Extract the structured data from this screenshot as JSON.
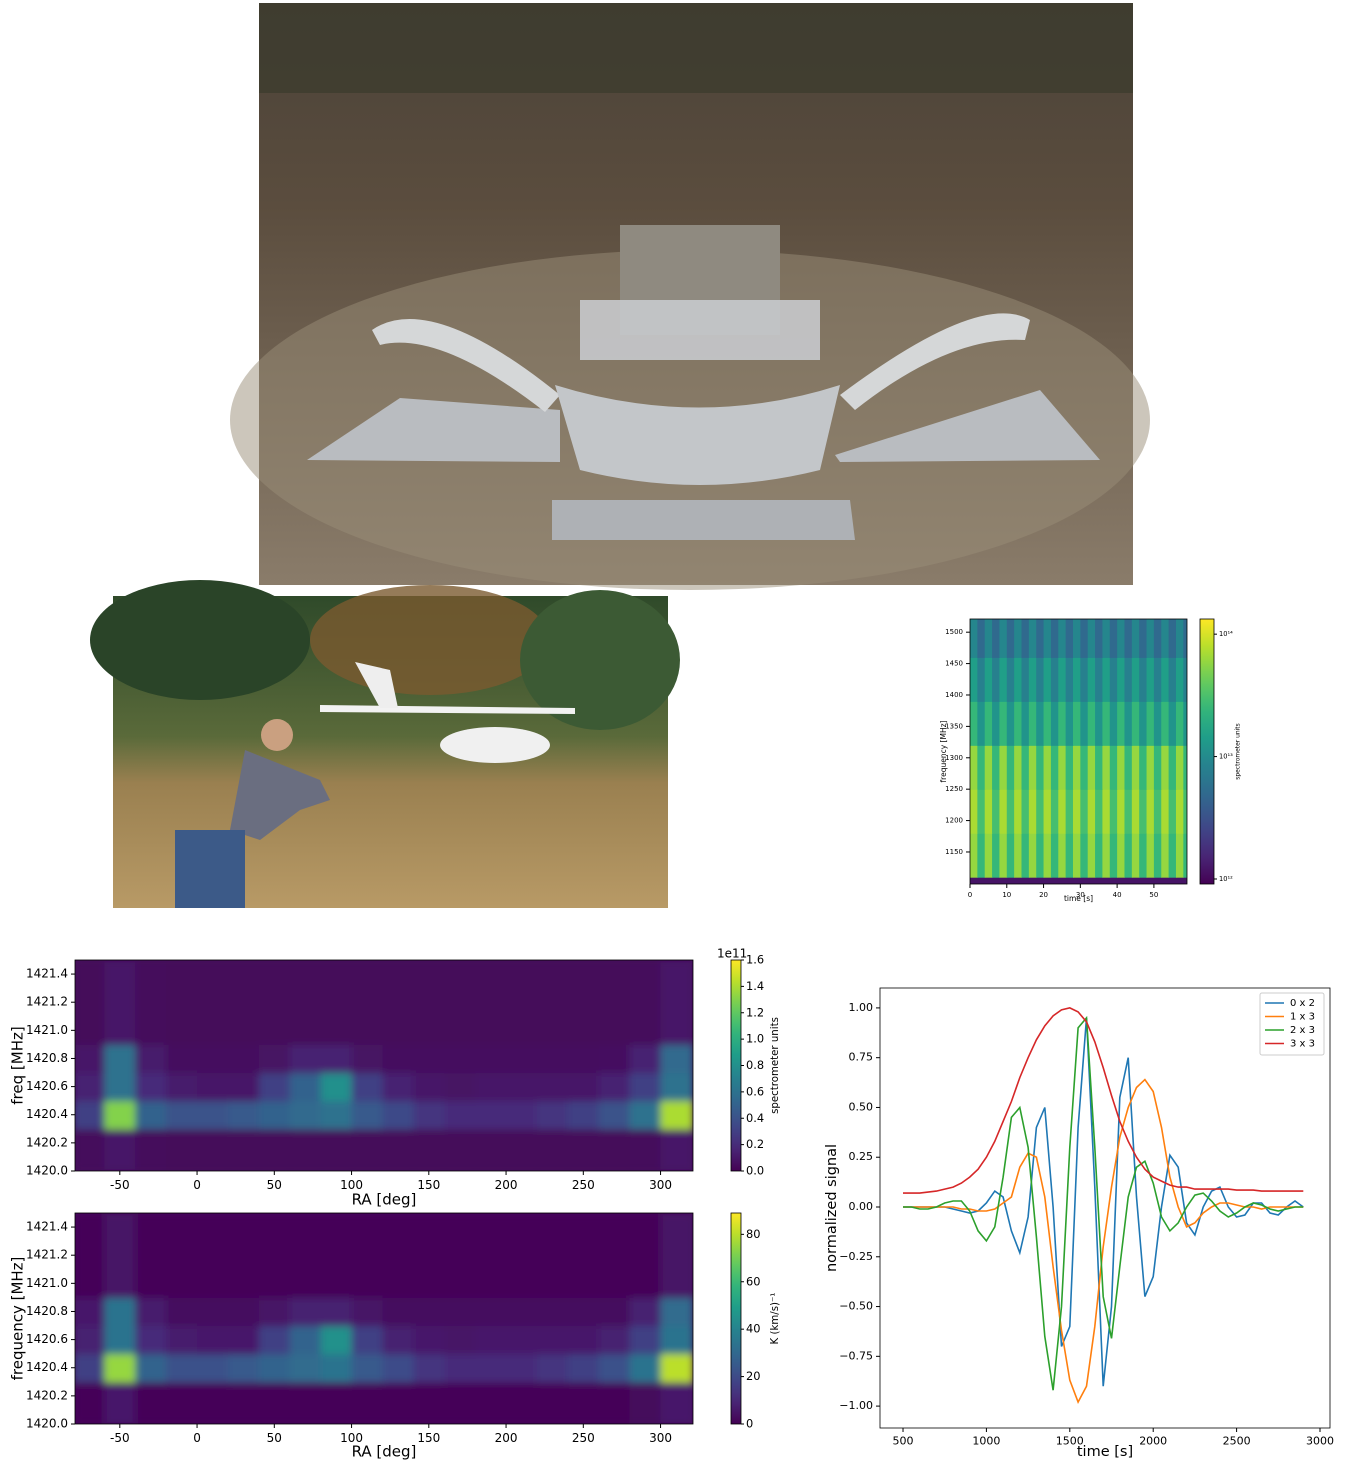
{
  "chart_data": [
    {
      "type": "heatmap",
      "xlabel": "time [s]",
      "ylabel": "frequency [MHz]",
      "colormap": "viridis",
      "xlim": [
        0,
        59
      ],
      "ylim": [
        1099,
        1521
      ],
      "xticks": [
        0,
        10,
        20,
        30,
        40,
        50
      ],
      "yticks": [
        1150,
        1200,
        1250,
        1300,
        1350,
        1400,
        1450,
        1500
      ],
      "xbins": [
        0,
        2,
        4,
        6,
        8,
        10,
        12,
        14,
        16,
        18,
        20,
        22,
        24,
        26,
        28,
        30,
        32,
        34,
        36,
        38,
        40,
        42,
        44,
        46,
        48,
        50,
        52,
        54,
        56,
        58,
        59
      ],
      "ybins": [
        1099,
        1110,
        1180,
        1250,
        1320,
        1390,
        1460,
        1521
      ],
      "z": [
        [
          1200000000000.0,
          1200000000000.0,
          1200000000000.0,
          1200000000000.0,
          1200000000000.0,
          1200000000000.0,
          1200000000000.0,
          1200000000000.0,
          1200000000000.0,
          1200000000000.0,
          1200000000000.0,
          1200000000000.0,
          1200000000000.0,
          1200000000000.0,
          1200000000000.0,
          1200000000000.0,
          1200000000000.0,
          1200000000000.0,
          1200000000000.0,
          1200000000000.0,
          1200000000000.0,
          1200000000000.0,
          1200000000000.0,
          1200000000000.0,
          1200000000000.0,
          1200000000000.0,
          1200000000000.0,
          1200000000000.0,
          1200000000000.0,
          1200000000000.0
        ],
        [
          60000000000000.0,
          25000000000000.0,
          60000000000000.0,
          25000000000000.0,
          60000000000000.0,
          25000000000000.0,
          60000000000000.0,
          25000000000000.0,
          60000000000000.0,
          25000000000000.0,
          60000000000000.0,
          25000000000000.0,
          60000000000000.0,
          25000000000000.0,
          60000000000000.0,
          25000000000000.0,
          60000000000000.0,
          25000000000000.0,
          60000000000000.0,
          25000000000000.0,
          60000000000000.0,
          25000000000000.0,
          60000000000000.0,
          25000000000000.0,
          60000000000000.0,
          25000000000000.0,
          60000000000000.0,
          25000000000000.0,
          60000000000000.0,
          25000000000000.0
        ],
        [
          70000000000000.0,
          30000000000000.0,
          70000000000000.0,
          30000000000000.0,
          70000000000000.0,
          30000000000000.0,
          70000000000000.0,
          30000000000000.0,
          70000000000000.0,
          30000000000000.0,
          70000000000000.0,
          30000000000000.0,
          70000000000000.0,
          30000000000000.0,
          70000000000000.0,
          30000000000000.0,
          70000000000000.0,
          30000000000000.0,
          70000000000000.0,
          30000000000000.0,
          70000000000000.0,
          30000000000000.0,
          70000000000000.0,
          30000000000000.0,
          70000000000000.0,
          30000000000000.0,
          70000000000000.0,
          30000000000000.0,
          70000000000000.0,
          30000000000000.0
        ],
        [
          60000000000000.0,
          25000000000000.0,
          60000000000000.0,
          25000000000000.0,
          60000000000000.0,
          25000000000000.0,
          60000000000000.0,
          25000000000000.0,
          60000000000000.0,
          25000000000000.0,
          60000000000000.0,
          25000000000000.0,
          60000000000000.0,
          25000000000000.0,
          60000000000000.0,
          25000000000000.0,
          60000000000000.0,
          25000000000000.0,
          60000000000000.0,
          25000000000000.0,
          60000000000000.0,
          25000000000000.0,
          60000000000000.0,
          25000000000000.0,
          60000000000000.0,
          25000000000000.0,
          60000000000000.0,
          25000000000000.0,
          60000000000000.0,
          25000000000000.0
        ],
        [
          25000000000000.0,
          12000000000000.0,
          25000000000000.0,
          12000000000000.0,
          25000000000000.0,
          12000000000000.0,
          25000000000000.0,
          12000000000000.0,
          25000000000000.0,
          12000000000000.0,
          25000000000000.0,
          12000000000000.0,
          25000000000000.0,
          12000000000000.0,
          25000000000000.0,
          12000000000000.0,
          25000000000000.0,
          12000000000000.0,
          25000000000000.0,
          12000000000000.0,
          25000000000000.0,
          12000000000000.0,
          25000000000000.0,
          12000000000000.0,
          25000000000000.0,
          12000000000000.0,
          25000000000000.0,
          12000000000000.0,
          25000000000000.0,
          12000000000000.0
        ],
        [
          15000000000000.0,
          8000000000000.0,
          15000000000000.0,
          8000000000000.0,
          15000000000000.0,
          8000000000000.0,
          15000000000000.0,
          8000000000000.0,
          15000000000000.0,
          8000000000000.0,
          15000000000000.0,
          8000000000000.0,
          15000000000000.0,
          8000000000000.0,
          15000000000000.0,
          8000000000000.0,
          15000000000000.0,
          8000000000000.0,
          15000000000000.0,
          8000000000000.0,
          15000000000000.0,
          8000000000000.0,
          15000000000000.0,
          8000000000000.0,
          15000000000000.0,
          8000000000000.0,
          15000000000000.0,
          8000000000000.0,
          15000000000000.0,
          8000000000000.0
        ],
        [
          9000000000000.0,
          5000000000000.0,
          9000000000000.0,
          5000000000000.0,
          9000000000000.0,
          5000000000000.0,
          9000000000000.0,
          5000000000000.0,
          9000000000000.0,
          5000000000000.0,
          9000000000000.0,
          5000000000000.0,
          9000000000000.0,
          5000000000000.0,
          9000000000000.0,
          5000000000000.0,
          9000000000000.0,
          5000000000000.0,
          9000000000000.0,
          5000000000000.0,
          9000000000000.0,
          5000000000000.0,
          9000000000000.0,
          5000000000000.0,
          9000000000000.0,
          5000000000000.0,
          9000000000000.0,
          5000000000000.0,
          9000000000000.0,
          5000000000000.0
        ]
      ],
      "colorbar": {
        "label": "spectrometer units",
        "log": true,
        "lim": [
          910000000000.0,
          133000000000000.0
        ],
        "ticks": [
          {
            "value": 1000000000000.0,
            "label": "10¹²"
          },
          {
            "value": 10000000000000.0,
            "label": "10¹³"
          },
          {
            "value": 100000000000000.0,
            "label": "10¹⁴"
          }
        ]
      }
    },
    {
      "type": "heatmap",
      "xlabel": "RA [deg]",
      "ylabel": "freq [MHz]",
      "colormap": "viridis",
      "xlim": [
        -79,
        321
      ],
      "ylim": [
        1420,
        1421.5
      ],
      "xticks": [
        -50,
        0,
        50,
        100,
        150,
        200,
        250,
        300
      ],
      "yticks": [
        {
          "value": 1420.0,
          "label": "1420.0"
        },
        1420.2,
        1420.4,
        1420.6,
        1420.8,
        {
          "value": 1421.0,
          "label": "1421.0"
        },
        1421.2,
        1421.4
      ],
      "xbins": [
        -80,
        -60,
        -40,
        -20,
        0,
        20,
        40,
        60,
        80,
        100,
        120,
        140,
        160,
        180,
        200,
        220,
        240,
        260,
        280,
        300,
        321
      ],
      "ybins": [
        1420.0,
        1420.3,
        1420.5,
        1420.7,
        1420.9,
        1421.5
      ],
      "z": [
        [
          0.04,
          0.1,
          0.04,
          0.03,
          0.03,
          0.03,
          0.03,
          0.03,
          0.03,
          0.03,
          0.03,
          0.03,
          0.03,
          0.03,
          0.03,
          0.03,
          0.03,
          0.03,
          0.04,
          0.1
        ],
        [
          0.3,
          1.3,
          0.5,
          0.4,
          0.4,
          0.45,
          0.5,
          0.55,
          0.6,
          0.45,
          0.35,
          0.25,
          0.2,
          0.2,
          0.2,
          0.25,
          0.3,
          0.4,
          0.6,
          1.4
        ],
        [
          0.15,
          0.6,
          0.2,
          0.12,
          0.1,
          0.1,
          0.3,
          0.5,
          0.8,
          0.3,
          0.15,
          0.1,
          0.08,
          0.1,
          0.1,
          0.1,
          0.1,
          0.15,
          0.3,
          0.6
        ],
        [
          0.1,
          0.6,
          0.12,
          0.05,
          0.05,
          0.05,
          0.08,
          0.15,
          0.15,
          0.08,
          0.05,
          0.05,
          0.05,
          0.05,
          0.05,
          0.05,
          0.05,
          0.06,
          0.15,
          0.55
        ],
        [
          0.03,
          0.1,
          0.04,
          0.03,
          0.03,
          0.03,
          0.03,
          0.03,
          0.03,
          0.03,
          0.03,
          0.03,
          0.03,
          0.03,
          0.03,
          0.03,
          0.03,
          0.03,
          0.04,
          0.1
        ]
      ],
      "colorbar": {
        "label": "spectrometer units",
        "log": false,
        "lim": [
          0,
          1.6
        ],
        "offset": "1e11",
        "ticks": [
          {
            "value": 0.0,
            "label": "0.0"
          },
          0.2,
          0.4,
          0.6,
          0.8,
          {
            "value": 1.0,
            "label": "1.0"
          },
          1.2,
          1.4,
          1.6
        ]
      }
    },
    {
      "type": "heatmap",
      "xlabel": "RA [deg]",
      "ylabel": "frequency [MHz]",
      "colormap": "viridis",
      "xlim": [
        -79,
        321
      ],
      "ylim": [
        1420,
        1421.5
      ],
      "xticks": [
        -50,
        0,
        50,
        100,
        150,
        200,
        250,
        300
      ],
      "yticks": [
        {
          "value": 1420.0,
          "label": "1420.0"
        },
        1420.2,
        1420.4,
        1420.6,
        1420.8,
        {
          "value": 1421.0,
          "label": "1421.0"
        },
        1421.2,
        1421.4
      ],
      "xbins": [
        -80,
        -60,
        -40,
        -20,
        0,
        20,
        40,
        60,
        80,
        100,
        120,
        140,
        160,
        180,
        200,
        220,
        240,
        260,
        280,
        300,
        321
      ],
      "ybins": [
        1420.0,
        1420.3,
        1420.5,
        1420.7,
        1420.9,
        1421.5
      ],
      "z": [
        [
          1,
          6,
          1,
          1,
          1,
          1,
          1,
          1,
          1,
          1,
          1,
          1,
          1,
          1,
          1,
          1,
          1,
          1,
          2,
          6
        ],
        [
          17,
          75,
          28,
          22,
          22,
          25,
          28,
          31,
          34,
          25,
          20,
          14,
          11,
          11,
          11,
          14,
          17,
          22,
          34,
          80
        ],
        [
          8,
          34,
          11,
          7,
          6,
          6,
          17,
          28,
          45,
          17,
          8,
          6,
          5,
          6,
          6,
          6,
          6,
          8,
          17,
          34
        ],
        [
          6,
          34,
          7,
          3,
          3,
          3,
          5,
          8,
          8,
          5,
          3,
          3,
          3,
          3,
          3,
          3,
          3,
          3,
          8,
          31
        ],
        [
          1,
          5,
          1,
          1,
          1,
          1,
          1,
          1,
          1,
          1,
          1,
          1,
          1,
          1,
          1,
          1,
          1,
          1,
          1,
          5
        ]
      ],
      "colorbar": {
        "label": "K (km/s)⁻¹",
        "log": false,
        "lim": [
          0,
          89
        ],
        "ticks": [
          0,
          20,
          40,
          60,
          80
        ]
      }
    },
    {
      "type": "line",
      "xlabel": "time [s]",
      "ylabel": "normalized signal",
      "legend": "upper right",
      "xlim": [
        362,
        3060
      ],
      "ylim": [
        -1.11,
        1.1
      ],
      "xticks": [
        500,
        1000,
        1500,
        2000,
        2500,
        3000
      ],
      "yticks": [
        {
          "value": -1,
          "label": "−1.00"
        },
        {
          "value": -0.75,
          "label": "−0.75"
        },
        {
          "value": -0.5,
          "label": "−0.50"
        },
        {
          "value": -0.25,
          "label": "−0.25"
        },
        {
          "value": 0,
          "label": "0.00"
        },
        {
          "value": 0.25,
          "label": "0.25"
        },
        {
          "value": 0.5,
          "label": "0.50"
        },
        {
          "value": 0.75,
          "label": "0.75"
        },
        {
          "value": 1,
          "label": "1.00"
        }
      ],
      "x": [
        500,
        550,
        600,
        650,
        700,
        750,
        800,
        850,
        900,
        950,
        1000,
        1050,
        1100,
        1150,
        1200,
        1250,
        1300,
        1350,
        1400,
        1450,
        1500,
        1550,
        1600,
        1650,
        1700,
        1750,
        1800,
        1850,
        1900,
        1950,
        2000,
        2050,
        2100,
        2150,
        2200,
        2250,
        2300,
        2350,
        2400,
        2450,
        2500,
        2550,
        2600,
        2650,
        2700,
        2750,
        2800,
        2850,
        2900
      ],
      "series": [
        {
          "name": "0 x 2",
          "color": "#1f77b4",
          "values": [
            0,
            0,
            0,
            0,
            0,
            0,
            -0.01,
            -0.02,
            -0.03,
            -0.02,
            0.02,
            0.08,
            0.05,
            -0.12,
            -0.23,
            -0.05,
            0.4,
            0.5,
            0.0,
            -0.7,
            -0.6,
            0.4,
            0.95,
            0.1,
            -0.9,
            -0.5,
            0.55,
            0.75,
            0.05,
            -0.45,
            -0.35,
            0.0,
            0.26,
            0.2,
            -0.08,
            -0.14,
            0.0,
            0.08,
            0.1,
            0.0,
            -0.05,
            -0.04,
            0.02,
            0.02,
            -0.03,
            -0.04,
            0.0,
            0.03,
            0.0
          ]
        },
        {
          "name": "1 x 3",
          "color": "#ff7f0e",
          "values": [
            0,
            0,
            0,
            0,
            0,
            0,
            0,
            -0.01,
            -0.01,
            -0.02,
            -0.02,
            -0.01,
            0.02,
            0.05,
            0.2,
            0.27,
            0.25,
            0.05,
            -0.3,
            -0.62,
            -0.87,
            -0.98,
            -0.9,
            -0.6,
            -0.2,
            0.1,
            0.35,
            0.5,
            0.6,
            0.64,
            0.58,
            0.4,
            0.15,
            0.0,
            -0.1,
            -0.08,
            -0.03,
            0.0,
            0.02,
            0.02,
            0.01,
            0.0,
            0.0,
            -0.01,
            0.0,
            0.0,
            0.0,
            0.0,
            0.0
          ]
        },
        {
          "name": "2 x 3",
          "color": "#2ca02c",
          "values": [
            0,
            0,
            -0.01,
            -0.01,
            0.0,
            0.02,
            0.03,
            0.03,
            -0.02,
            -0.12,
            -0.17,
            -0.1,
            0.15,
            0.45,
            0.5,
            0.3,
            -0.15,
            -0.65,
            -0.92,
            -0.5,
            0.3,
            0.9,
            0.95,
            0.3,
            -0.45,
            -0.66,
            -0.3,
            0.05,
            0.2,
            0.23,
            0.12,
            -0.05,
            -0.12,
            -0.08,
            0.0,
            0.06,
            0.07,
            0.03,
            -0.02,
            -0.05,
            -0.03,
            0.0,
            0.02,
            0.01,
            -0.01,
            -0.02,
            -0.01,
            0.0,
            0.0
          ]
        },
        {
          "name": "3 x 3",
          "color": "#d62728",
          "values": [
            0.07,
            0.07,
            0.07,
            0.075,
            0.08,
            0.09,
            0.1,
            0.12,
            0.15,
            0.19,
            0.25,
            0.33,
            0.43,
            0.53,
            0.65,
            0.75,
            0.84,
            0.91,
            0.96,
            0.99,
            1.0,
            0.98,
            0.93,
            0.83,
            0.7,
            0.56,
            0.43,
            0.33,
            0.25,
            0.19,
            0.15,
            0.13,
            0.11,
            0.1,
            0.1,
            0.09,
            0.09,
            0.09,
            0.09,
            0.09,
            0.085,
            0.085,
            0.085,
            0.08,
            0.08,
            0.08,
            0.08,
            0.08,
            0.08
          ]
        }
      ]
    }
  ]
}
